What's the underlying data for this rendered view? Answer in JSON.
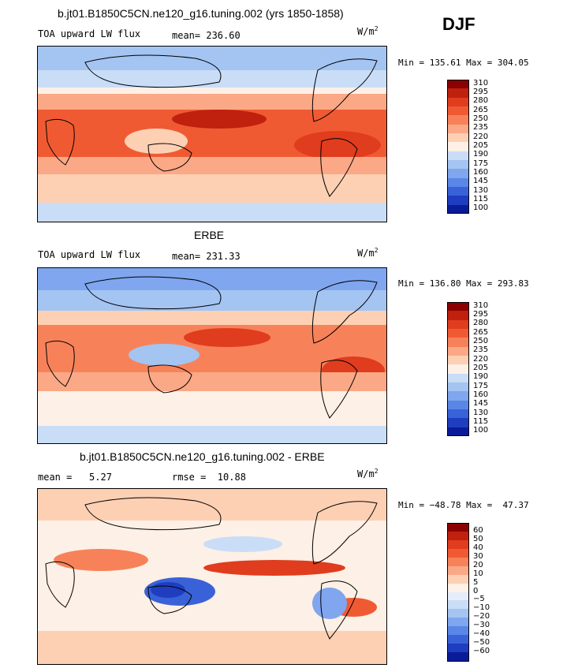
{
  "season": "DJF",
  "chart_data": [
    {
      "type": "heatmap",
      "title": "b.jt01.B1850C5CN.ne120_g16.tuning.002 (yrs 1850-1858)",
      "left_label": "TOA upward LW flux",
      "center_label": "mean= 236.60",
      "units": "W/m",
      "units_sup": "2",
      "minmax": "Min = 135.61 Max = 304.05",
      "mean": 236.6,
      "min": 135.61,
      "max": 304.05,
      "levels": [
        "310",
        "295",
        "280",
        "265",
        "250",
        "235",
        "220",
        "205",
        "190",
        "175",
        "160",
        "145",
        "130",
        "115",
        "100"
      ],
      "colors": [
        "#8b0000",
        "#c0200e",
        "#e03c1e",
        "#f05a32",
        "#f7825a",
        "#fba886",
        "#fdd0b4",
        "#fdf0e6",
        "#c9ddf7",
        "#a4c4f2",
        "#7fa6ee",
        "#5a86e8",
        "#3a62d8",
        "#1f3dbf",
        "#0a1b99"
      ]
    },
    {
      "type": "heatmap",
      "title": "ERBE",
      "left_label": "TOA upward LW flux",
      "center_label": "mean= 231.33",
      "units": "W/m",
      "units_sup": "2",
      "minmax": "Min = 136.80 Max = 293.83",
      "mean": 231.33,
      "min": 136.8,
      "max": 293.83,
      "levels": [
        "310",
        "295",
        "280",
        "265",
        "250",
        "235",
        "220",
        "205",
        "190",
        "175",
        "160",
        "145",
        "130",
        "115",
        "100"
      ],
      "colors": [
        "#8b0000",
        "#c0200e",
        "#e03c1e",
        "#f05a32",
        "#f7825a",
        "#fba886",
        "#fdd0b4",
        "#fdf0e6",
        "#c9ddf7",
        "#a4c4f2",
        "#7fa6ee",
        "#5a86e8",
        "#3a62d8",
        "#1f3dbf",
        "#0a1b99"
      ]
    },
    {
      "type": "heatmap",
      "title": "b.jt01.B1850C5CN.ne120_g16.tuning.002 - ERBE",
      "left_label": "mean =   5.27",
      "center_label": "rmse =  10.88",
      "units": "W/m",
      "units_sup": "2",
      "minmax": "Min = −48.78 Max =  47.37",
      "mean": 5.27,
      "rmse": 10.88,
      "min": -48.78,
      "max": 47.37,
      "levels": [
        "60",
        "50",
        "40",
        "30",
        "20",
        "10",
        "5",
        "0",
        "−5",
        "−10",
        "−20",
        "−30",
        "−40",
        "−50",
        "−60"
      ],
      "colors": [
        "#8b0000",
        "#c0200e",
        "#e03c1e",
        "#f05a32",
        "#f7825a",
        "#fba886",
        "#fdd0b4",
        "#fdf0e6",
        "#e4eefb",
        "#c9ddf7",
        "#a4c4f2",
        "#7fa6ee",
        "#5a86e8",
        "#3a62d8",
        "#1f3dbf",
        "#0a1b99"
      ]
    }
  ]
}
